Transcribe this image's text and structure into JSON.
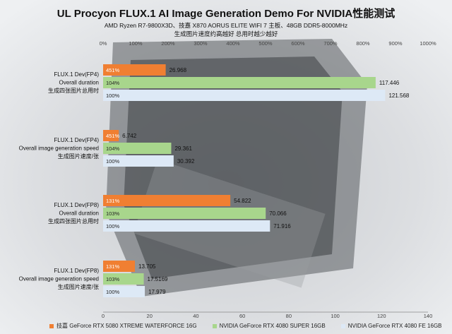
{
  "title": "UL Procyon FLUX.1 AI Image Generation Demo For NVIDIA性能测试",
  "subtitle_line1": "AMD Ryzen R7-9800X3D、技嘉 X870 AORUS ELITE WIFI 7 主板、48GB DDR5-8000MHz",
  "subtitle_line2": "生成图片速度约高越好 总用时越少越好",
  "colors": {
    "series1": "#f07f32",
    "series2": "#a8d68c",
    "series3": "#dde9f6",
    "background": "#e9eaec"
  },
  "chart_data": {
    "type": "bar",
    "orientation": "horizontal",
    "top_axis": {
      "ticks": [
        "0%",
        "100%",
        "200%",
        "300%",
        "400%",
        "500%",
        "600%",
        "700%",
        "800%",
        "900%",
        "1000%"
      ],
      "range": [
        0,
        1000
      ]
    },
    "bottom_axis": {
      "ticks": [
        "0",
        "20",
        "40",
        "60",
        "80",
        "100",
        "120",
        "140"
      ],
      "range": [
        0,
        140
      ]
    },
    "series": [
      {
        "name": "技嘉 GeForce RTX 5080 XTREME WATERFORCE 16G",
        "color": "#f07f32"
      },
      {
        "name": "NVIDIA GeForce RTX 4080 SUPER 16GB",
        "color": "#a8d68c"
      },
      {
        "name": "NVIDIA GeForce RTX 4080 FE 16GB",
        "color": "#dde9f6"
      }
    ],
    "groups": [
      {
        "label": [
          "FLUX.1 Dev(FP4)",
          "Overall duration",
          "生成四张图片总用时"
        ],
        "values": [
          26.968,
          117.446,
          121.568
        ],
        "value_labels": [
          "26.968",
          "117.446",
          "121.568"
        ],
        "percent_labels": [
          "451%",
          "104%",
          "100%"
        ]
      },
      {
        "label": [
          "FLUX.1 Dev(FP4)",
          "Overall image generation speed",
          "生成图片速度/张"
        ],
        "values": [
          6.742,
          29.361,
          30.392
        ],
        "value_labels": [
          "6.742",
          "29.361",
          "30.392"
        ],
        "percent_labels": [
          "451%",
          "104%",
          "100%"
        ]
      },
      {
        "label": [
          "FLUX.1 Dev(FP8)",
          "Overall duration",
          "生成四张图片总用时"
        ],
        "values": [
          54.822,
          70.066,
          71.916
        ],
        "value_labels": [
          "54.822",
          "70.066",
          "71.916"
        ],
        "percent_labels": [
          "131%",
          "103%",
          "100%"
        ]
      },
      {
        "label": [
          "FLUX.1 Dev(FP8)",
          "Overall image generation speed",
          "生成图片速度/张"
        ],
        "values": [
          13.705,
          17.5169,
          17.979
        ],
        "value_labels": [
          "13.705",
          "17.5169",
          "17.979"
        ],
        "percent_labels": [
          "131%",
          "103%",
          "100%"
        ]
      }
    ]
  }
}
